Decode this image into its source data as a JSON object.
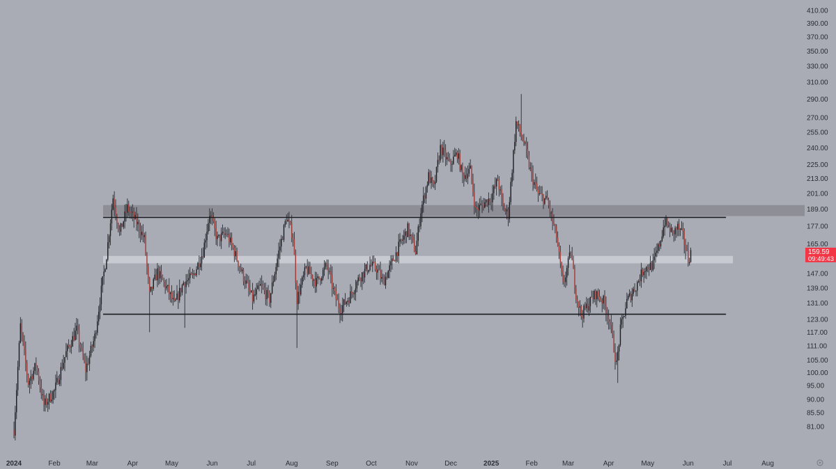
{
  "chart_data": {
    "type": "candlestick",
    "y_axis": {
      "scale": "log",
      "range": [
        78,
        420
      ],
      "ticks": [
        "410.00",
        "390.00",
        "370.00",
        "350.00",
        "330.00",
        "310.00",
        "290.00",
        "270.00",
        "255.00",
        "240.00",
        "225.00",
        "213.00",
        "201.00",
        "189.00",
        "177.00",
        "165.00",
        "147.00",
        "139.00",
        "131.00",
        "123.00",
        "117.00",
        "111.00",
        "105.00",
        "100.00",
        "95.00",
        "90.00",
        "85.50",
        "81.00"
      ]
    },
    "x_axis": {
      "ticks": [
        {
          "label": "2024",
          "date": "2024-01-01",
          "bold": true
        },
        {
          "label": "Feb",
          "date": "2024-02-01"
        },
        {
          "label": "Mar",
          "date": "2024-03-01"
        },
        {
          "label": "Apr",
          "date": "2024-04-01"
        },
        {
          "label": "May",
          "date": "2024-05-01"
        },
        {
          "label": "Jun",
          "date": "2024-06-01"
        },
        {
          "label": "Jul",
          "date": "2024-07-01"
        },
        {
          "label": "Aug",
          "date": "2024-08-01"
        },
        {
          "label": "Sep",
          "date": "2024-09-01"
        },
        {
          "label": "Oct",
          "date": "2024-10-01"
        },
        {
          "label": "Nov",
          "date": "2024-11-01"
        },
        {
          "label": "Dec",
          "date": "2024-12-01"
        },
        {
          "label": "2025",
          "date": "2025-01-01",
          "bold": true
        },
        {
          "label": "Feb",
          "date": "2025-02-01"
        },
        {
          "label": "Mar",
          "date": "2025-03-01"
        },
        {
          "label": "Apr",
          "date": "2025-04-01"
        },
        {
          "label": "May",
          "date": "2025-05-01"
        },
        {
          "label": "Jun",
          "date": "2025-06-01"
        },
        {
          "label": "Jul",
          "date": "2025-07-01"
        },
        {
          "label": "Aug",
          "date": "2025-08-01"
        }
      ]
    },
    "price_path": [
      [
        "2024-01-01",
        80
      ],
      [
        "2024-01-06",
        120
      ],
      [
        "2024-01-12",
        96
      ],
      [
        "2024-01-18",
        103
      ],
      [
        "2024-01-24",
        88
      ],
      [
        "2024-02-01",
        93
      ],
      [
        "2024-02-10",
        108
      ],
      [
        "2024-02-18",
        118
      ],
      [
        "2024-02-25",
        101
      ],
      [
        "2024-03-03",
        115
      ],
      [
        "2024-03-07",
        133
      ],
      [
        "2024-03-12",
        158
      ],
      [
        "2024-03-17",
        198
      ],
      [
        "2024-03-22",
        172
      ],
      [
        "2024-03-28",
        190
      ],
      [
        "2024-04-05",
        178
      ],
      [
        "2024-04-10",
        168
      ],
      [
        "2024-04-14",
        135
      ],
      [
        "2024-04-20",
        148
      ],
      [
        "2024-04-28",
        138
      ],
      [
        "2024-05-03",
        130
      ],
      [
        "2024-05-10",
        142
      ],
      [
        "2024-05-17",
        145
      ],
      [
        "2024-05-25",
        160
      ],
      [
        "2024-05-30",
        186
      ],
      [
        "2024-06-05",
        168
      ],
      [
        "2024-06-12",
        172
      ],
      [
        "2024-06-18",
        160
      ],
      [
        "2024-06-25",
        145
      ],
      [
        "2024-07-02",
        133
      ],
      [
        "2024-07-08",
        140
      ],
      [
        "2024-07-15",
        133
      ],
      [
        "2024-07-22",
        160
      ],
      [
        "2024-07-28",
        183
      ],
      [
        "2024-08-02",
        170
      ],
      [
        "2024-08-05",
        133
      ],
      [
        "2024-08-12",
        150
      ],
      [
        "2024-08-20",
        142
      ],
      [
        "2024-08-28",
        152
      ],
      [
        "2024-09-03",
        135
      ],
      [
        "2024-09-07",
        128
      ],
      [
        "2024-09-14",
        134
      ],
      [
        "2024-09-22",
        145
      ],
      [
        "2024-09-30",
        152
      ],
      [
        "2024-10-05",
        150
      ],
      [
        "2024-10-10",
        142
      ],
      [
        "2024-10-15",
        150
      ],
      [
        "2024-10-22",
        163
      ],
      [
        "2024-10-29",
        175
      ],
      [
        "2024-11-04",
        160
      ],
      [
        "2024-11-08",
        188
      ],
      [
        "2024-11-14",
        215
      ],
      [
        "2024-11-18",
        205
      ],
      [
        "2024-11-23",
        240
      ],
      [
        "2024-11-30",
        225
      ],
      [
        "2024-12-06",
        235
      ],
      [
        "2024-12-10",
        215
      ],
      [
        "2024-12-16",
        220
      ],
      [
        "2024-12-20",
        188
      ],
      [
        "2024-12-26",
        193
      ],
      [
        "2025-01-01",
        198
      ],
      [
        "2025-01-06",
        212
      ],
      [
        "2025-01-10",
        190
      ],
      [
        "2025-01-14",
        185
      ],
      [
        "2025-01-18",
        235
      ],
      [
        "2025-01-20",
        265
      ],
      [
        "2025-01-26",
        245
      ],
      [
        "2025-02-01",
        215
      ],
      [
        "2025-02-06",
        200
      ],
      [
        "2025-02-13",
        195
      ],
      [
        "2025-02-20",
        170
      ],
      [
        "2025-02-25",
        140
      ],
      [
        "2025-03-03",
        160
      ],
      [
        "2025-03-07",
        136
      ],
      [
        "2025-03-11",
        125
      ],
      [
        "2025-03-16",
        130
      ],
      [
        "2025-03-22",
        136
      ],
      [
        "2025-03-28",
        132
      ],
      [
        "2025-04-02",
        122
      ],
      [
        "2025-04-07",
        103
      ],
      [
        "2025-04-10",
        118
      ],
      [
        "2025-04-15",
        132
      ],
      [
        "2025-04-22",
        140
      ],
      [
        "2025-04-28",
        150
      ],
      [
        "2025-05-05",
        152
      ],
      [
        "2025-05-10",
        165
      ],
      [
        "2025-05-14",
        180
      ],
      [
        "2025-05-20",
        172
      ],
      [
        "2025-05-24",
        176
      ],
      [
        "2025-05-28",
        170
      ],
      [
        "2025-06-01",
        155
      ],
      [
        "2025-06-03",
        159.59
      ]
    ],
    "annotations": {
      "resistance_line": 183,
      "support_line": 125.5,
      "upper_zone": [
        184,
        192
      ],
      "mid_zone": [
        153,
        157.5
      ],
      "horizontal_lines_end": "2025-06-30"
    },
    "current_price": {
      "value": "159.59",
      "countdown": "09:49:43",
      "color": "#f23645"
    },
    "colors": {
      "background": "#a9abb5",
      "up_candle": "#1b1c20",
      "down_candle": "#a23a36",
      "wick": "#2a2b30",
      "upper_zone": "#8d8e96",
      "mid_zone": "#c8cad2",
      "line": "#1b1c20",
      "text": "#2b2d34"
    }
  }
}
